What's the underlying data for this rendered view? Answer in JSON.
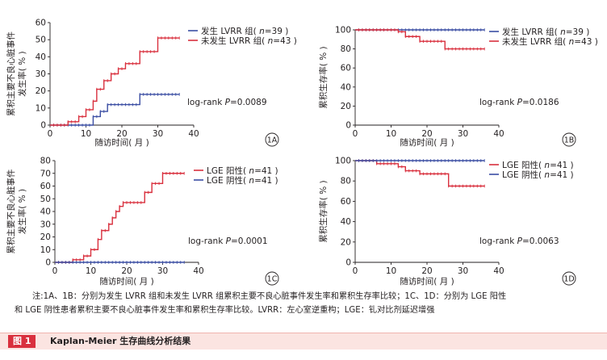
{
  "chart_data": [
    {
      "panel": "1A",
      "type": "line",
      "step": true,
      "xlabel": "随访时间( 月 )",
      "ylabel_lines": [
        "累积主要不良心脏事件",
        "发生率( % )"
      ],
      "xlim": [
        0,
        40
      ],
      "ylim": [
        0,
        60
      ],
      "xticks": [
        0,
        10,
        20,
        30,
        40
      ],
      "yticks": [
        0,
        10,
        20,
        30,
        40,
        50,
        60
      ],
      "legend_position": "top-right",
      "annotation": "log-rank P=0.0089",
      "series": [
        {
          "legend": [
            "发生 LVRR 组( ",
            "n",
            "=39 )"
          ],
          "color": "#3b4ea3",
          "x": [
            0,
            12,
            14,
            16,
            25,
            36
          ],
          "y": [
            0,
            5,
            8,
            12,
            18,
            18
          ]
        },
        {
          "legend": [
            "未发生 LVRR 组( ",
            "n",
            "=43 )"
          ],
          "color": "#d9303e",
          "x": [
            0,
            5,
            8,
            10,
            12,
            13,
            15,
            17,
            19,
            21,
            25,
            30,
            36
          ],
          "y": [
            0,
            2,
            5,
            9,
            14,
            21,
            26,
            30,
            33,
            36,
            43,
            51,
            51
          ]
        }
      ]
    },
    {
      "panel": "1B",
      "type": "line",
      "step": true,
      "xlabel": "随访时间( 月 )",
      "ylabel_lines": [
        "累积生存率( % )"
      ],
      "xlim": [
        0,
        40
      ],
      "ylim": [
        0,
        100
      ],
      "xticks": [
        0,
        10,
        20,
        30,
        40
      ],
      "yticks": [
        0,
        20,
        40,
        60,
        80,
        100
      ],
      "legend_position": "top-right",
      "annotation": "log-rank P=0.0186",
      "series": [
        {
          "legend": [
            "发生 LVRR 组( ",
            "n",
            "=39 )"
          ],
          "color": "#3b4ea3",
          "x": [
            0,
            36
          ],
          "y": [
            100,
            100
          ]
        },
        {
          "legend": [
            "未发生 LVRR 组( ",
            "n",
            "=43 )"
          ],
          "color": "#d9303e",
          "x": [
            0,
            12,
            14,
            18,
            25,
            36
          ],
          "y": [
            100,
            98,
            93,
            88,
            80,
            80
          ]
        }
      ]
    },
    {
      "panel": "1C",
      "type": "line",
      "step": true,
      "xlabel": "随访时间( 月 )",
      "ylabel_lines": [
        "累积主要不良心脏事件",
        "发生率( % )"
      ],
      "xlim": [
        0,
        40
      ],
      "ylim": [
        0,
        80
      ],
      "xticks": [
        0,
        10,
        20,
        30,
        40
      ],
      "yticks": [
        0,
        10,
        20,
        30,
        40,
        50,
        60,
        70,
        80
      ],
      "legend_position": "top-right",
      "annotation": "log-rank P=0.0001",
      "series": [
        {
          "legend": [
            "LGE 阳性( ",
            "n",
            "=41 )"
          ],
          "color": "#d9303e",
          "x": [
            0,
            5,
            8,
            10,
            12,
            13,
            15,
            16,
            17,
            18,
            19,
            21,
            25,
            27,
            30,
            36
          ],
          "y": [
            0,
            2,
            5,
            10,
            18,
            25,
            30,
            35,
            40,
            44,
            47,
            47,
            55,
            62,
            70,
            70
          ]
        },
        {
          "legend": [
            "LGE 阴性( ",
            "n",
            "=41 )"
          ],
          "color": "#3b4ea3",
          "x": [
            0,
            36
          ],
          "y": [
            0,
            0
          ]
        }
      ]
    },
    {
      "panel": "1D",
      "type": "line",
      "step": true,
      "xlabel": "随访时间( 月 )",
      "ylabel_lines": [
        "累积生存率( % )"
      ],
      "xlim": [
        0,
        40
      ],
      "ylim": [
        0,
        100
      ],
      "xticks": [
        0,
        10,
        20,
        30,
        40
      ],
      "yticks": [
        0,
        20,
        40,
        60,
        80,
        100
      ],
      "legend_position": "top-right",
      "annotation": "log-rank P=0.0063",
      "series": [
        {
          "legend": [
            "LGE 阳性( ",
            "n",
            "=41 )"
          ],
          "color": "#d9303e",
          "x": [
            0,
            6,
            12,
            14,
            18,
            26,
            36
          ],
          "y": [
            100,
            97,
            94,
            90,
            87,
            75,
            75
          ]
        },
        {
          "legend": [
            "LGE 阴性( ",
            "n",
            "=41 )"
          ],
          "color": "#3b4ea3",
          "x": [
            0,
            36
          ],
          "y": [
            100,
            100
          ]
        }
      ]
    }
  ],
  "note": {
    "line1": "注:1A、1B：分别为发生 LVRR 组和未发生 LVRR 组累积主要不良心脏事件发生率和累积生存率比较；1C、1D：分别为 LGE 阳性",
    "line2": "和 LGE 阴性患者累积主要不良心脏事件发生率和累积生存率比较。LVRR：左心室逆重构；LGE：钆对比剂延迟增强"
  },
  "caption": {
    "tag": "图 1",
    "text": "Kaplan-Meier 生存曲线分析结果"
  },
  "colors": {
    "red": "#d9303e",
    "blue": "#3b4ea3",
    "caption_bg": "#fbe4e1"
  }
}
